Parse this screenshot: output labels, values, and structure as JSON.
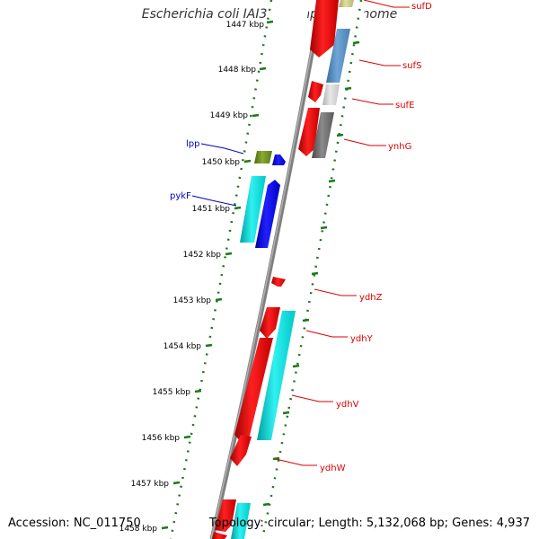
{
  "title": "Escherichia coli IAI39, complete genome",
  "footer": {
    "accession": "Accession: NC_011750",
    "summary": "Topology: circular; Length: 5,132,068 bp; Genes: 4,937"
  },
  "colors": {
    "background": "#ffffff",
    "backbone": "#8a8a8a",
    "ticks": "#1a7a1a",
    "forward_label": "#0000cc",
    "reverse_label": "#dd0000"
  },
  "ticks": [
    "1447 kbp",
    "1448 kbp",
    "1449 kbp",
    "1450 kbp",
    "1451 kbp",
    "1452 kbp",
    "1453 kbp",
    "1454 kbp",
    "1455 kbp",
    "1456 kbp",
    "1457 kbp",
    "1458 kbp"
  ],
  "gene_labels": [
    {
      "name": "sufD",
      "strand": "reverse"
    },
    {
      "name": "sufS",
      "strand": "reverse"
    },
    {
      "name": "sufE",
      "strand": "reverse"
    },
    {
      "name": "ynhG",
      "strand": "reverse"
    },
    {
      "name": "lpp",
      "strand": "forward"
    },
    {
      "name": "pykF",
      "strand": "forward"
    },
    {
      "name": "ydhZ",
      "strand": "reverse"
    },
    {
      "name": "ydhY",
      "strand": "reverse"
    },
    {
      "name": "ydhV",
      "strand": "reverse"
    },
    {
      "name": "ydhW",
      "strand": "reverse"
    }
  ]
}
